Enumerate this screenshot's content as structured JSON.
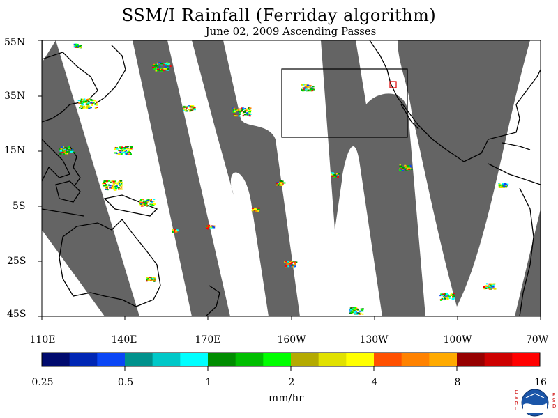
{
  "title": "SSM/I Rainfall (Ferriday algorithm)",
  "subtitle": "June 02, 2009  Ascending Passes",
  "lat_labels": [
    "55N",
    "35N",
    "15N",
    "5S",
    "25S",
    "45S"
  ],
  "lon_labels": [
    "110E",
    "140E",
    "170E",
    "160W",
    "130W",
    "100W",
    "70W"
  ],
  "colorbar": {
    "labels": [
      "0.25",
      "0.5",
      "1",
      "2",
      "4",
      "8",
      "16"
    ],
    "units": "mm/hr",
    "colors": [
      "#000a6e",
      "#0026b4",
      "#0a46f5",
      "#00918c",
      "#00c8c8",
      "#00ffff",
      "#008c00",
      "#00be00",
      "#00ff00",
      "#b4aa00",
      "#e1e100",
      "#ffff00",
      "#ff5000",
      "#ff8200",
      "#ffaa00",
      "#960000",
      "#cd0000",
      "#ff0000"
    ]
  },
  "colors": {
    "swath_gap": "#646464",
    "land": "#000000"
  },
  "logo": {
    "left_text": "ESRL",
    "right_text": "PSD"
  }
}
